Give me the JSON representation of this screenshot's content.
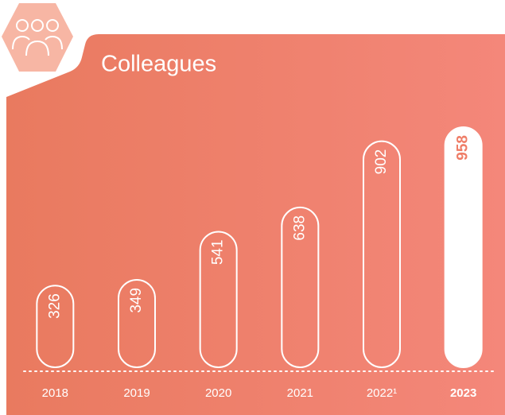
{
  "chart_data": {
    "type": "bar",
    "title": "Colleagues",
    "categories": [
      "2018",
      "2019",
      "2020",
      "2021",
      "2022¹",
      "2023"
    ],
    "values": [
      326,
      349,
      541,
      638,
      902,
      958
    ],
    "color": "#ffffff",
    "highlight_color": "#ef7d67"
  }
}
